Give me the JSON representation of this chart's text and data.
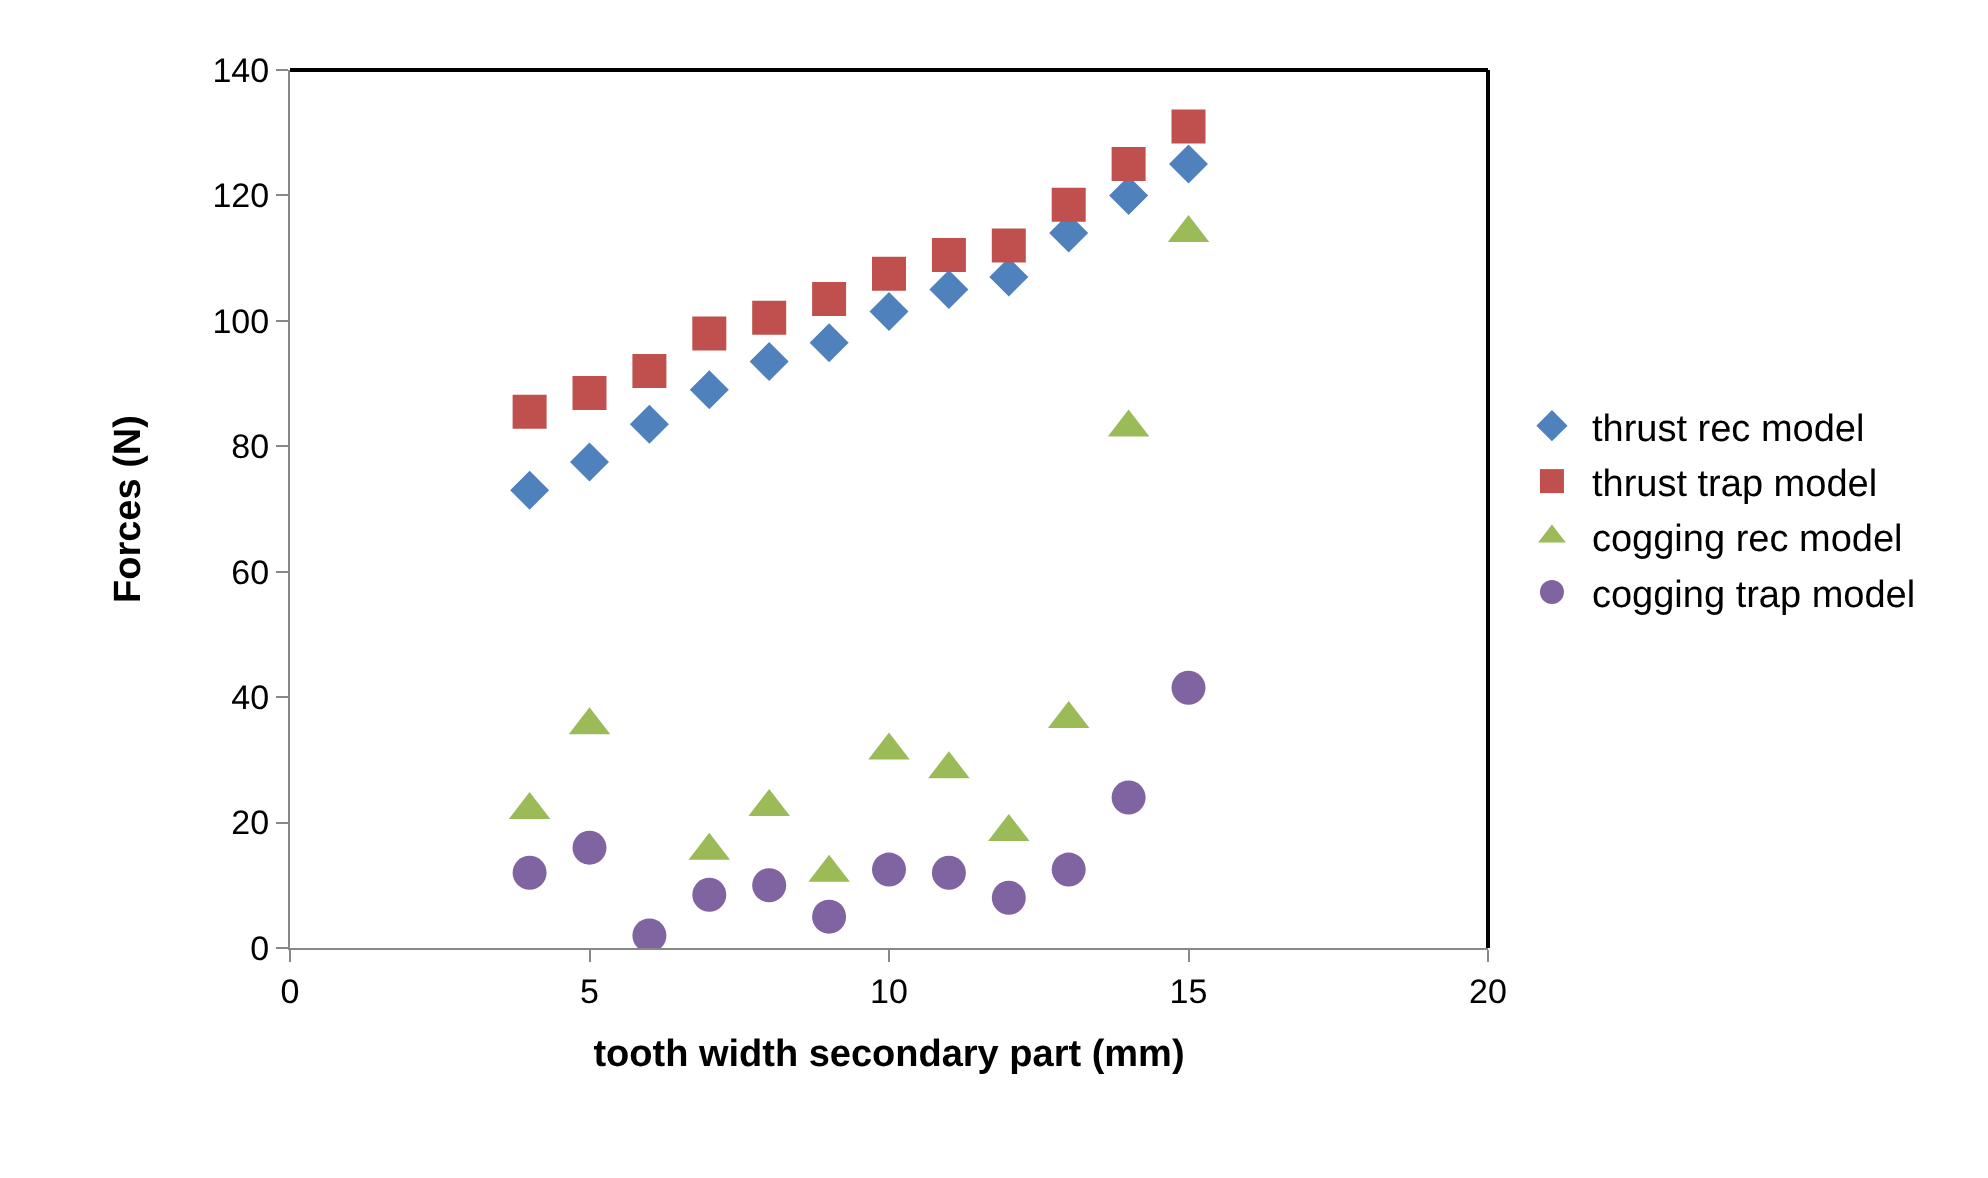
{
  "chart_data": {
    "type": "scatter",
    "xlabel": "tooth width secondary part (mm)",
    "ylabel": "Forces (N)",
    "x": [
      4,
      5,
      6,
      7,
      8,
      9,
      10,
      11,
      12,
      13,
      14,
      15
    ],
    "xlim": [
      0,
      20
    ],
    "xticks": [
      0,
      5,
      10,
      15,
      20
    ],
    "ylim": [
      0,
      140
    ],
    "yticks": [
      0,
      20,
      40,
      60,
      80,
      100,
      120,
      140
    ],
    "grid": false,
    "legend": "right",
    "series": [
      {
        "name": "thrust rec model",
        "color": "#4f81bd",
        "marker": "diamond",
        "values": [
          73,
          77.5,
          83.5,
          89,
          93.5,
          96.5,
          101.5,
          105,
          107,
          114,
          120,
          125
        ]
      },
      {
        "name": "thrust trap model",
        "color": "#c0504d",
        "marker": "square",
        "values": [
          85.5,
          88.5,
          92,
          98,
          100.5,
          103.5,
          107.5,
          110.5,
          112,
          118.5,
          125,
          131
        ]
      },
      {
        "name": "cogging rec model",
        "color": "#9bbb59",
        "marker": "triangle",
        "values": [
          22,
          35.5,
          null,
          15.5,
          22.5,
          12,
          31.5,
          28.5,
          18.5,
          36.5,
          83,
          114
        ]
      },
      {
        "name": "cogging trap model",
        "color": "#8064a2",
        "marker": "circle",
        "values": [
          12,
          16,
          2,
          8.5,
          10,
          5,
          12.5,
          12,
          8,
          12.5,
          24,
          41.5
        ]
      }
    ]
  }
}
